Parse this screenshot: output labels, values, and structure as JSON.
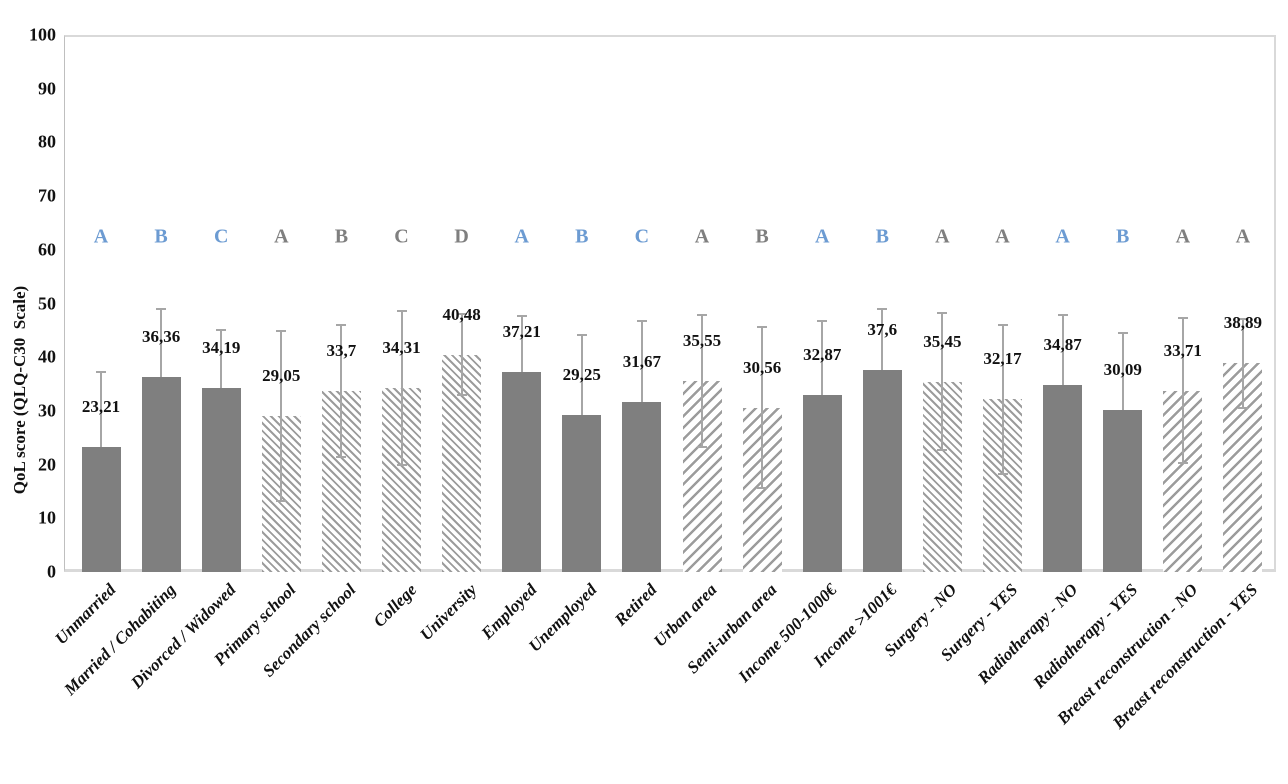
{
  "chart_data": {
    "type": "bar",
    "title": "",
    "ylabel": "QoL score (QLQ-C30  Scale)",
    "xlabel": "",
    "ylim": [
      0,
      100
    ],
    "ytick_step": 10,
    "yticks": [
      "0",
      "10",
      "20",
      "30",
      "40",
      "50",
      "60",
      "70",
      "80",
      "90",
      "100"
    ],
    "grid": false,
    "legend": "none",
    "decimal_separator": ",",
    "colors": {
      "bar_solid": "#7f7f7f",
      "bar_hatch_stripe": "#9c9c9c",
      "error_bar": "#a6a6a6",
      "letter_blue": "#6c9bd2",
      "letter_gray": "#7f7f7f",
      "axis_border": "#d9d9d9",
      "label_text": "#111111"
    },
    "bars": [
      {
        "category": "Unmarried",
        "value": 23.21,
        "label": "23,21",
        "error": 14.0,
        "fill": "solid",
        "letter": "A",
        "letter_color": "blue"
      },
      {
        "category": "Married / Cohabiting",
        "value": 36.36,
        "label": "36,36",
        "error": 12.6,
        "fill": "solid",
        "letter": "B",
        "letter_color": "blue"
      },
      {
        "category": "Divorced / Widowed",
        "value": 34.19,
        "label": "34,19",
        "error": 10.9,
        "fill": "solid",
        "letter": "C",
        "letter_color": "blue"
      },
      {
        "category": "Primary school",
        "value": 29.05,
        "label": "29,05",
        "error": 15.9,
        "fill": "hatch-back",
        "letter": "A",
        "letter_color": "gray"
      },
      {
        "category": "Secondary school",
        "value": 33.7,
        "label": "33,7",
        "error": 12.3,
        "fill": "hatch-back",
        "letter": "B",
        "letter_color": "gray"
      },
      {
        "category": "College",
        "value": 34.31,
        "label": "34,31",
        "error": 14.3,
        "fill": "hatch-back",
        "letter": "C",
        "letter_color": "gray"
      },
      {
        "category": "University",
        "value": 40.48,
        "label": "40,48",
        "error": 7.5,
        "fill": "hatch-back",
        "letter": "D",
        "letter_color": "gray"
      },
      {
        "category": "Employed",
        "value": 37.21,
        "label": "37,21",
        "error": 10.5,
        "fill": "solid",
        "letter": "A",
        "letter_color": "blue"
      },
      {
        "category": "Unemployed",
        "value": 29.25,
        "label": "29,25",
        "error": 14.8,
        "fill": "solid",
        "letter": "B",
        "letter_color": "blue"
      },
      {
        "category": "Retired",
        "value": 31.67,
        "label": "31,67",
        "error": 15.0,
        "fill": "solid",
        "letter": "C",
        "letter_color": "blue"
      },
      {
        "category": "Urban area",
        "value": 35.55,
        "label": "35,55",
        "error": 12.3,
        "fill": "hatch-slash",
        "letter": "A",
        "letter_color": "gray"
      },
      {
        "category": "Semi-urban area",
        "value": 30.56,
        "label": "30,56",
        "error": 15.0,
        "fill": "hatch-slash",
        "letter": "B",
        "letter_color": "gray"
      },
      {
        "category": "Income 500-1000€",
        "value": 32.87,
        "label": "32,87",
        "error": 13.9,
        "fill": "solid",
        "letter": "A",
        "letter_color": "blue"
      },
      {
        "category": "Income >1001€",
        "value": 37.6,
        "label": "37,6",
        "error": 11.4,
        "fill": "solid",
        "letter": "B",
        "letter_color": "blue"
      },
      {
        "category": "Surgery - NO",
        "value": 35.45,
        "label": "35,45",
        "error": 12.7,
        "fill": "hatch-back",
        "letter": "A",
        "letter_color": "gray"
      },
      {
        "category": "Surgery - YES",
        "value": 32.17,
        "label": "32,17",
        "error": 13.9,
        "fill": "hatch-back",
        "letter": "A",
        "letter_color": "gray"
      },
      {
        "category": "Radiotherapy - NO",
        "value": 34.87,
        "label": "34,87",
        "error": 13.0,
        "fill": "solid",
        "letter": "A",
        "letter_color": "blue"
      },
      {
        "category": "Radiotherapy - YES",
        "value": 30.09,
        "label": "30,09",
        "error": 14.4,
        "fill": "solid",
        "letter": "B",
        "letter_color": "blue"
      },
      {
        "category": "Breast reconstruction - NO",
        "value": 33.71,
        "label": "33,71",
        "error": 13.5,
        "fill": "hatch-slash",
        "letter": "A",
        "letter_color": "gray"
      },
      {
        "category": "Breast reconstruction - YES",
        "value": 38.89,
        "label": "38,89",
        "error": 8.3,
        "fill": "hatch-slash",
        "letter": "A",
        "letter_color": "gray"
      }
    ]
  }
}
